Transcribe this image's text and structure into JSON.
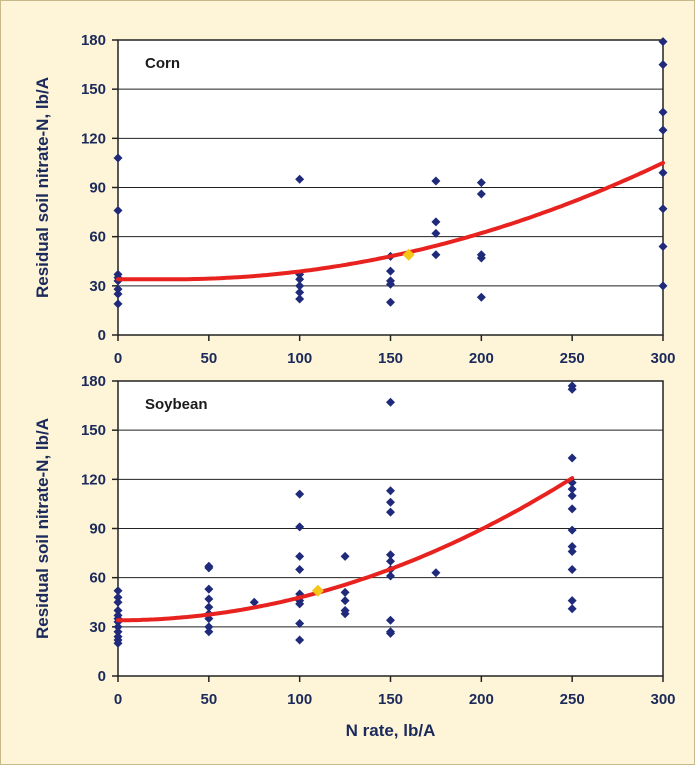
{
  "chart_data": [
    {
      "type": "scatter",
      "panel_label": "Corn",
      "ylabel": "Residual soil nitrate-N, lb/A",
      "xlabel": "",
      "xlim": [
        0,
        300
      ],
      "ylim": [
        0,
        180
      ],
      "xticks": [
        0,
        50,
        100,
        150,
        200,
        250,
        300
      ],
      "yticks": [
        0,
        30,
        60,
        90,
        120,
        150,
        180
      ],
      "grid": "horizontal",
      "colors": {
        "points": "#1f2a7a",
        "curve": "#e8231f",
        "highlight": "#f5c518"
      },
      "points": [
        [
          0,
          108
        ],
        [
          0,
          76
        ],
        [
          0,
          37
        ],
        [
          0,
          35
        ],
        [
          0,
          33
        ],
        [
          0,
          28
        ],
        [
          0,
          25
        ],
        [
          0,
          19
        ],
        [
          100,
          95
        ],
        [
          100,
          37
        ],
        [
          100,
          34
        ],
        [
          100,
          30
        ],
        [
          100,
          26
        ],
        [
          100,
          22
        ],
        [
          150,
          48
        ],
        [
          150,
          39
        ],
        [
          150,
          33
        ],
        [
          150,
          31
        ],
        [
          150,
          20
        ],
        [
          175,
          94
        ],
        [
          175,
          69
        ],
        [
          175,
          62
        ],
        [
          175,
          49
        ],
        [
          200,
          93
        ],
        [
          200,
          86
        ],
        [
          200,
          49
        ],
        [
          200,
          47
        ],
        [
          200,
          23
        ],
        [
          300,
          179
        ],
        [
          300,
          165
        ],
        [
          300,
          136
        ],
        [
          300,
          125
        ],
        [
          300,
          99
        ],
        [
          300,
          77
        ],
        [
          300,
          54
        ],
        [
          300,
          30
        ]
      ],
      "curve": {
        "x_start": 0,
        "x_end": 300,
        "vertex_x": 30,
        "vertex_y": 34,
        "coef": 0.000974
      },
      "highlight_point": [
        160,
        49
      ]
    },
    {
      "type": "scatter",
      "panel_label": "Soybean",
      "ylabel": "Residual soil nitrate-N, lb/A",
      "xlabel": "N rate, lb/A",
      "xlim": [
        0,
        300
      ],
      "ylim": [
        0,
        180
      ],
      "xticks": [
        0,
        50,
        100,
        150,
        200,
        250,
        300
      ],
      "yticks": [
        0,
        30,
        60,
        90,
        120,
        150,
        180
      ],
      "grid": "horizontal",
      "colors": {
        "points": "#1f2a7a",
        "curve": "#e8231f",
        "highlight": "#f5c518"
      },
      "points": [
        [
          0,
          52
        ],
        [
          0,
          48
        ],
        [
          0,
          45
        ],
        [
          0,
          40
        ],
        [
          0,
          37
        ],
        [
          0,
          35
        ],
        [
          0,
          33
        ],
        [
          0,
          30
        ],
        [
          0,
          27
        ],
        [
          0,
          24
        ],
        [
          0,
          22
        ],
        [
          0,
          20
        ],
        [
          50,
          67
        ],
        [
          50,
          66
        ],
        [
          50,
          53
        ],
        [
          50,
          47
        ],
        [
          50,
          42
        ],
        [
          50,
          38
        ],
        [
          50,
          35
        ],
        [
          50,
          30
        ],
        [
          50,
          27
        ],
        [
          75,
          45
        ],
        [
          100,
          111
        ],
        [
          100,
          91
        ],
        [
          100,
          73
        ],
        [
          100,
          65
        ],
        [
          100,
          50
        ],
        [
          100,
          48
        ],
        [
          100,
          46
        ],
        [
          100,
          44
        ],
        [
          100,
          32
        ],
        [
          100,
          22
        ],
        [
          125,
          73
        ],
        [
          125,
          51
        ],
        [
          125,
          46
        ],
        [
          125,
          40
        ],
        [
          125,
          38
        ],
        [
          150,
          167
        ],
        [
          150,
          113
        ],
        [
          150,
          106
        ],
        [
          150,
          100
        ],
        [
          150,
          74
        ],
        [
          150,
          70
        ],
        [
          150,
          65
        ],
        [
          150,
          61
        ],
        [
          150,
          34
        ],
        [
          150,
          27
        ],
        [
          150,
          26
        ],
        [
          175,
          63
        ],
        [
          250,
          177
        ],
        [
          250,
          175
        ],
        [
          250,
          133
        ],
        [
          250,
          118
        ],
        [
          250,
          114
        ],
        [
          250,
          110
        ],
        [
          250,
          102
        ],
        [
          250,
          89
        ],
        [
          250,
          79
        ],
        [
          250,
          76
        ],
        [
          250,
          65
        ],
        [
          250,
          46
        ],
        [
          250,
          41
        ]
      ],
      "curve": {
        "x_start": 0,
        "x_end": 250,
        "vertex_x": 0,
        "vertex_y": 34,
        "coef": 0.001388
      },
      "highlight_point": [
        110,
        52
      ]
    }
  ]
}
